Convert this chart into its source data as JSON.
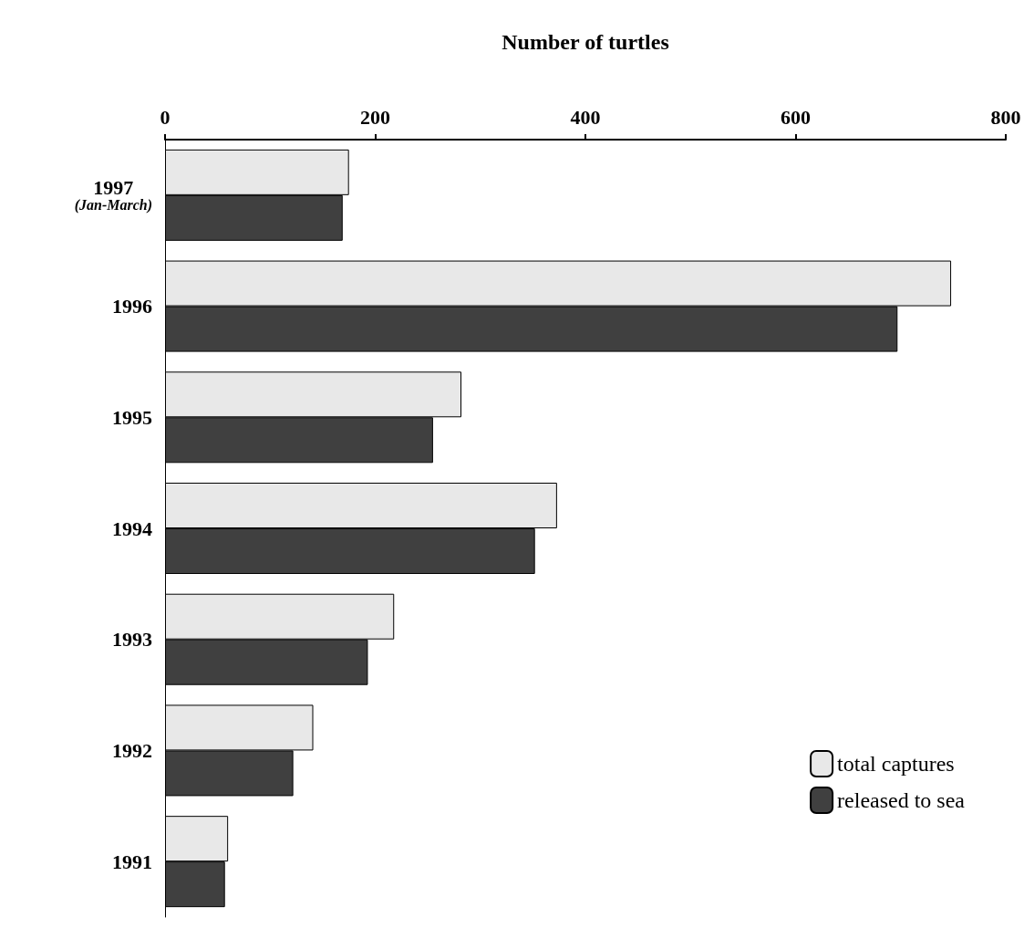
{
  "chart_data": {
    "type": "bar",
    "orientation": "horizontal",
    "xlabel": "Number of turtles",
    "categories": [
      "1997 (Jan-March)",
      "1996",
      "1995",
      "1994",
      "1993",
      "1992",
      "1991"
    ],
    "series": [
      {
        "name": "total captures",
        "color": "#e8e8e8",
        "values": [
          175,
          748,
          282,
          373,
          218,
          141,
          60
        ]
      },
      {
        "name": "released to sea",
        "color": "#404040",
        "values": [
          169,
          697,
          255,
          352,
          193,
          122,
          57
        ]
      }
    ],
    "xlim": [
      0,
      800
    ],
    "xticks": [
      0,
      200,
      400,
      600,
      800
    ],
    "grid": false,
    "legend": "bottom right"
  }
}
